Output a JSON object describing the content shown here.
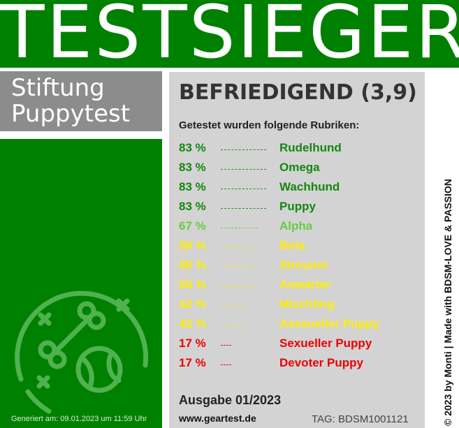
{
  "header": {
    "title": "TESTSIEGER"
  },
  "brand": {
    "line1": "Stiftung",
    "line2": "Puppytest"
  },
  "footer": {
    "generated": "Generiert am: 09.01.2023 um 11:59 Uhr"
  },
  "results": {
    "grade": "BEFRIEDIGEND (3,9)",
    "subheading": "Getestet wurden folgende Rubriken:",
    "rows": [
      {
        "percent": "83 %",
        "dots": "-----------------",
        "name": "Rudelhund",
        "color": "#118811"
      },
      {
        "percent": "83 %",
        "dots": "-----------------",
        "name": "Omega",
        "color": "#118811"
      },
      {
        "percent": "83 %",
        "dots": "-----------------",
        "name": "Wachhund",
        "color": "#118811"
      },
      {
        "percent": "83 %",
        "dots": "-----------------",
        "name": "Puppy",
        "color": "#118811"
      },
      {
        "percent": "67 %",
        "dots": "--------------",
        "name": "Alpha",
        "color": "#66cc44"
      },
      {
        "percent": "58 %",
        "dots": "------------",
        "name": "Beta",
        "color": "#ffee00"
      },
      {
        "percent": "58 %",
        "dots": "------------",
        "name": "Streuner",
        "color": "#ffee00"
      },
      {
        "percent": "58 %",
        "dots": "------------",
        "name": "Anwärter",
        "color": "#ffee00"
      },
      {
        "percent": "42 %",
        "dots": "---------",
        "name": "Mischling",
        "color": "#ffee00"
      },
      {
        "percent": "42 %",
        "dots": "---------",
        "name": "Asexueller Puppy",
        "color": "#ffee00"
      },
      {
        "percent": "17 %",
        "dots": "----",
        "name": "Sexueller Puppy",
        "color": "#ee0000"
      },
      {
        "percent": "17 %",
        "dots": "----",
        "name": "Devoter Puppy",
        "color": "#ee0000"
      }
    ],
    "issue": "Ausgabe 01/2023",
    "website": "www.geartest.de",
    "tag": "TAG: BDSM1001121"
  },
  "side": {
    "credit": "© 2023 by Monti | Made with BDSM-LOVE & PASSION"
  },
  "logo": {
    "icons": [
      "bone-icon",
      "ball-icon",
      "cross-icon"
    ]
  }
}
